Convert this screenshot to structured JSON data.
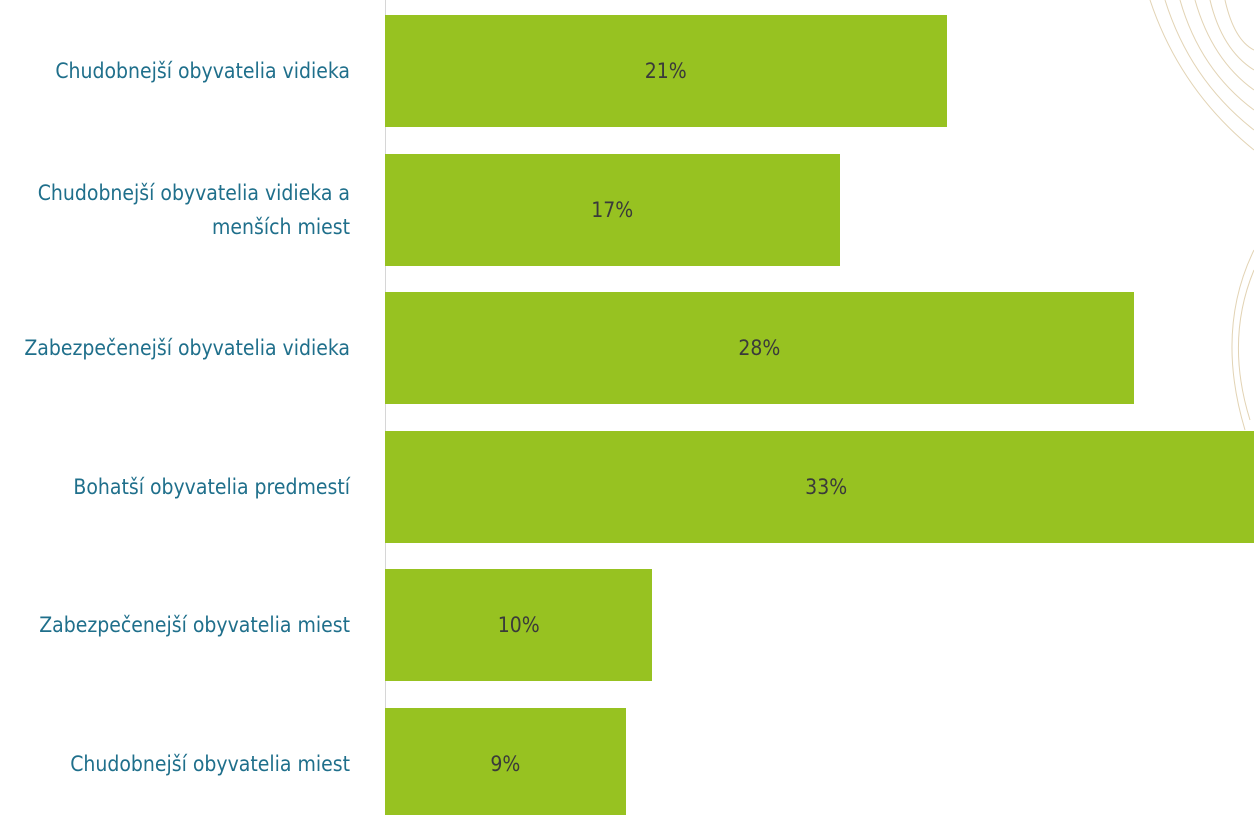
{
  "chart_data": {
    "type": "bar",
    "orientation": "horizontal",
    "categories": [
      "Chudobnejší obyvatelia vidieka",
      "Chudobnejší obyvatelia vidieka a menších miest",
      "Zabezpečenejší obyvatelia vidieka",
      "Bohatší obyvatelia predmestí",
      "Zabezpečenejší obyvatelia miest",
      "Chudobnejší obyvatelia miest"
    ],
    "values": [
      21,
      17,
      28,
      33,
      10,
      9
    ],
    "value_labels": [
      "21%",
      "17%",
      "28%",
      "33%",
      "10%",
      "9%"
    ],
    "color": "#97c221",
    "xlim": [
      0,
      32.5
    ]
  }
}
